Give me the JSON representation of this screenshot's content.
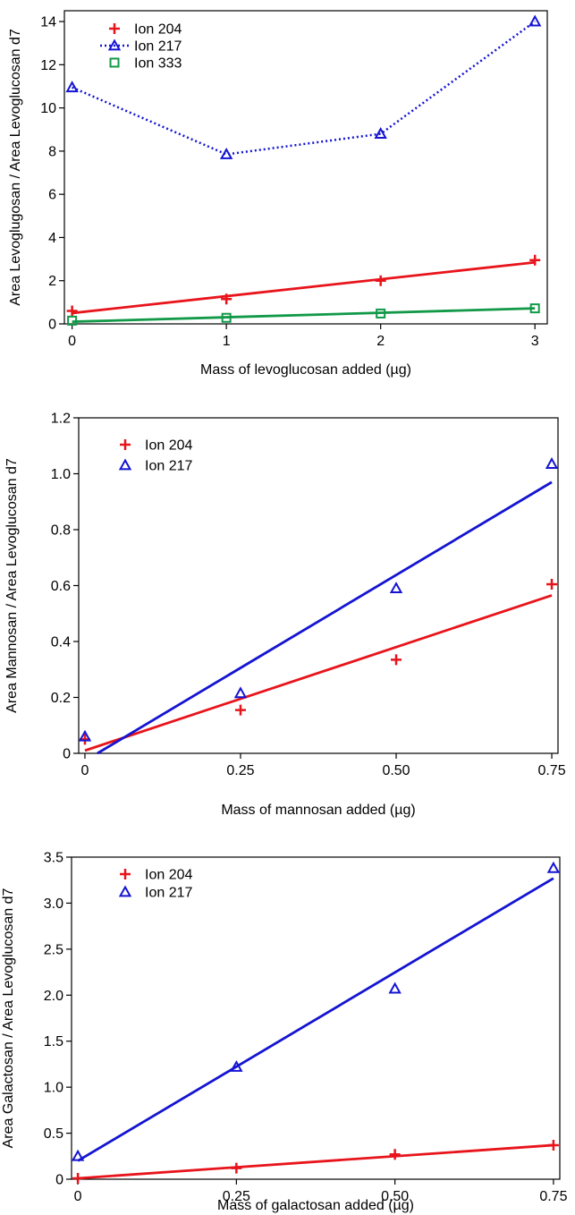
{
  "chart_data": [
    {
      "type": "line",
      "xlabel": "Mass of levoglucosan added (µg)",
      "ylabel": "Area Levoglugosan / Area Levoglucosan d7",
      "xlim": [
        -0.05,
        3.08
      ],
      "ylim": [
        0,
        14.5
      ],
      "xticks": [
        0,
        1,
        2,
        3
      ],
      "xtick_labels": [
        "0",
        "1",
        "2",
        "3"
      ],
      "yticks": [
        0,
        2,
        4,
        6,
        8,
        10,
        12,
        14
      ],
      "ytick_labels": [
        "0",
        "2",
        "4",
        "6",
        "8",
        "10",
        "12",
        "14"
      ],
      "grid": false,
      "legend": "top-left",
      "series": [
        {
          "name": "Ion 204",
          "color": "#e8141b",
          "marker": "plus",
          "line": "fit",
          "x": [
            0,
            1,
            2,
            3
          ],
          "y": [
            0.6,
            1.15,
            2.0,
            2.95
          ],
          "fit": [
            [
              0,
              0.5
            ],
            [
              3,
              2.85
            ]
          ]
        },
        {
          "name": "Ion 217",
          "color": "#1414d2",
          "marker": "triangle",
          "line": "dotted",
          "x": [
            0,
            1,
            2,
            3
          ],
          "y": [
            10.95,
            7.85,
            8.8,
            14.0
          ]
        },
        {
          "name": "Ion 333",
          "color": "#119948",
          "marker": "square",
          "line": "fit",
          "x": [
            0,
            1,
            2,
            3
          ],
          "y": [
            0.15,
            0.28,
            0.48,
            0.72
          ],
          "fit": [
            [
              0,
              0.1
            ],
            [
              3,
              0.72
            ]
          ]
        }
      ]
    },
    {
      "type": "scatter",
      "xlabel": "Mass of mannosan added (µg)",
      "ylabel": "Area Mannosan / Area Levoglucosan d7",
      "xlim": [
        -0.01,
        0.76
      ],
      "ylim": [
        0,
        1.2
      ],
      "xticks": [
        0,
        0.25,
        0.5,
        0.75
      ],
      "xtick_labels": [
        "0",
        "0.25",
        "0.50",
        "0.75"
      ],
      "yticks": [
        0,
        0.2,
        0.4,
        0.6,
        0.8,
        1.0,
        1.2
      ],
      "ytick_labels": [
        "0",
        "0.2",
        "0.4",
        "0.6",
        "0.8",
        "1.0",
        "1.2"
      ],
      "grid": false,
      "legend": "top-left",
      "series": [
        {
          "name": "Ion 204",
          "color": "#e8141b",
          "marker": "plus",
          "line": "fit",
          "x": [
            0,
            0.25,
            0.5,
            0.75
          ],
          "y": [
            0.05,
            0.155,
            0.335,
            0.605
          ],
          "fit": [
            [
              0,
              0.01
            ],
            [
              0.75,
              0.565
            ]
          ]
        },
        {
          "name": "Ion 217",
          "color": "#1414d2",
          "marker": "triangle",
          "line": "fit",
          "x": [
            0,
            0.25,
            0.5,
            0.75
          ],
          "y": [
            0.06,
            0.215,
            0.59,
            1.035
          ],
          "fit": [
            [
              0.02,
              0
            ],
            [
              0.75,
              0.97
            ]
          ]
        }
      ]
    },
    {
      "type": "scatter",
      "xlabel": "Mass of galactosan added (µg)",
      "ylabel": "Area Galactosan / Area Levoglucosan d7",
      "xlim": [
        -0.01,
        0.76
      ],
      "ylim": [
        0,
        3.5
      ],
      "xticks": [
        0,
        0.25,
        0.5,
        0.75
      ],
      "xtick_labels": [
        "0",
        "0.25",
        "0.50",
        "0.75"
      ],
      "yticks": [
        0,
        0.5,
        1.0,
        1.5,
        2.0,
        2.5,
        3.0,
        3.5
      ],
      "ytick_labels": [
        "0",
        "0.5",
        "1.0",
        "1.5",
        "2.0",
        "2.5",
        "3.0",
        "3.5"
      ],
      "grid": false,
      "legend": "top-left",
      "series": [
        {
          "name": "Ion 204",
          "color": "#e8141b",
          "marker": "plus",
          "line": "fit",
          "x": [
            0,
            0.25,
            0.5,
            0.75
          ],
          "y": [
            0.01,
            0.12,
            0.27,
            0.37
          ],
          "fit": [
            [
              0,
              0.01
            ],
            [
              0.75,
              0.37
            ]
          ]
        },
        {
          "name": "Ion 217",
          "color": "#1414d2",
          "marker": "triangle",
          "line": "fit",
          "x": [
            0,
            0.25,
            0.5,
            0.75
          ],
          "y": [
            0.25,
            1.22,
            2.07,
            3.38
          ],
          "fit": [
            [
              0,
              0.2
            ],
            [
              0.75,
              3.27
            ]
          ]
        }
      ]
    }
  ]
}
